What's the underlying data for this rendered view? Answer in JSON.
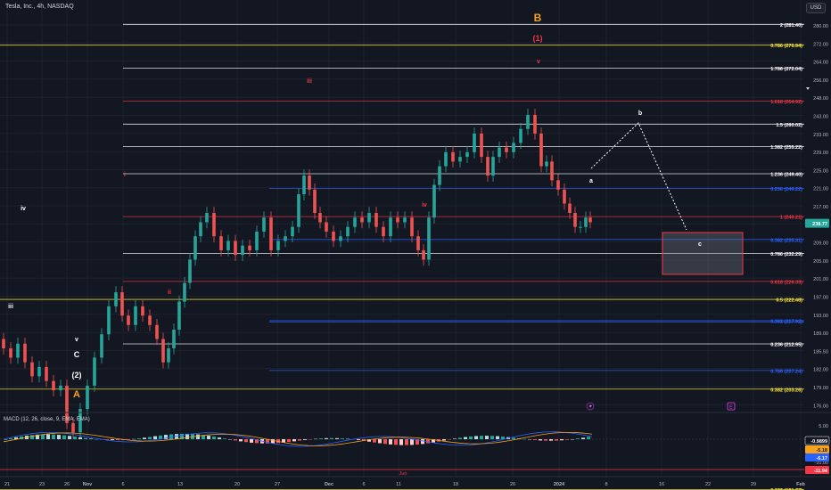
{
  "header": {
    "title": "Tesla, Inc., 4h, NASDAQ",
    "currency_button": "USD"
  },
  "macd": {
    "label": "MACD (12, 26, close, 9, EMA, EMA)",
    "right_axis": [
      "5.00",
      "0.00",
      "-5.00",
      "-10.00"
    ],
    "badges": [
      {
        "text": "-0.9899",
        "color": "#131722",
        "border": "#ffffff",
        "fg": "#ffffff"
      },
      {
        "text": "-5.18",
        "color": "#f7a21b",
        "fg": "#131722"
      },
      {
        "text": "-6.17",
        "color": "#2962ff",
        "fg": "#ffffff"
      },
      {
        "text": "-11.94",
        "color": "#f23645",
        "fg": "#ffffff"
      }
    ],
    "bottom_label": "Jun"
  },
  "price_axis": [
    "280.00",
    "272.00",
    "264.00",
    "256.00",
    "248.00",
    "243.00",
    "233.00",
    "229.00",
    "225.00",
    "221.00",
    "217.00",
    "213.00",
    "209.00",
    "205.00",
    "201.00",
    "197.00",
    "193.00",
    "189.00",
    "185.50",
    "182.00",
    "179.00",
    "176.00"
  ],
  "current_price": "238.77",
  "time_axis": [
    "21",
    "23",
    "26",
    "Nov",
    "6",
    "13",
    "20",
    "27",
    "Dec",
    "6",
    "11",
    "18",
    "26",
    "2024",
    "8",
    "16",
    "22",
    "29",
    "Feb"
  ],
  "fib_levels": [
    {
      "label": "2 (281.40)",
      "price": 281.4,
      "color": "#ffffff"
    },
    {
      "label": "0.786 (276.94)",
      "price": 276.94,
      "color": "#ffeb3b"
    },
    {
      "label": "1.786 (272.04)",
      "price": 272.04,
      "color": "#ffffff"
    },
    {
      "label": "1.618 (264.92)",
      "price": 264.92,
      "color": "#f23645"
    },
    {
      "label": "1.5 (260.02)",
      "price": 260.02,
      "color": "#ffffff"
    },
    {
      "label": "1.382 (255.22)",
      "price": 255.22,
      "color": "#ffffff"
    },
    {
      "label": "1.236 (249.40)",
      "price": 249.4,
      "color": "#ffffff"
    },
    {
      "label": "0.236 (246.22)",
      "price": 246.22,
      "color": "#2962ff"
    },
    {
      "label": "1 (240.21)",
      "price": 240.21,
      "color": "#f23645"
    },
    {
      "label": "0.382 (235.31)",
      "price": 235.31,
      "color": "#2962ff"
    },
    {
      "label": "0.786 (232.29)",
      "price": 232.29,
      "color": "#ffffff"
    },
    {
      "label": "0.618 (226.33)",
      "price": 226.33,
      "color": "#f23645"
    },
    {
      "label": "0.5 (222.48)",
      "price": 222.48,
      "color": "#ffeb3b"
    },
    {
      "label": "0.382 (217.92)",
      "price": 217.92,
      "color": "#2962ff"
    },
    {
      "label": "0.236 (212.95)",
      "price": 212.95,
      "color": "#ffffff"
    },
    {
      "label": "0.786 (207.24)",
      "price": 207.24,
      "color": "#2962ff"
    },
    {
      "label": "0.382 (203.26)",
      "price": 203.26,
      "color": "#ffeb3b"
    },
    {
      "label": "0.236 (181.77)",
      "price": 181.77,
      "color": "#ffeb3b"
    }
  ],
  "wave_labels": [
    {
      "text": "B",
      "color": "#f7a21b"
    },
    {
      "text": "(1)",
      "color": "#f23645"
    },
    {
      "text": "v",
      "color": "#f23645"
    },
    {
      "text": "iii",
      "color": "#f23645"
    },
    {
      "text": "i",
      "color": "#f23645"
    },
    {
      "text": "ii",
      "color": "#f23645"
    },
    {
      "text": "iv",
      "color": "#f23645"
    },
    {
      "text": "iv",
      "color": "#ffffff"
    },
    {
      "text": "iii",
      "color": "#ffffff"
    },
    {
      "text": "v",
      "color": "#ffffff"
    },
    {
      "text": "C",
      "color": "#ffffff"
    },
    {
      "text": "(2)",
      "color": "#ffffff"
    },
    {
      "text": "A",
      "color": "#f7a21b"
    },
    {
      "text": "a",
      "color": "#ffffff"
    },
    {
      "text": "b",
      "color": "#ffffff"
    },
    {
      "text": "c",
      "color": "#ffffff"
    }
  ],
  "colors": {
    "background": "#131722",
    "up": "#26a69a",
    "down": "#ef5350",
    "grid": "#1e222d",
    "target_box": "#f23645"
  },
  "icons": [
    "lightning-icon",
    "earnings-icon"
  ]
}
